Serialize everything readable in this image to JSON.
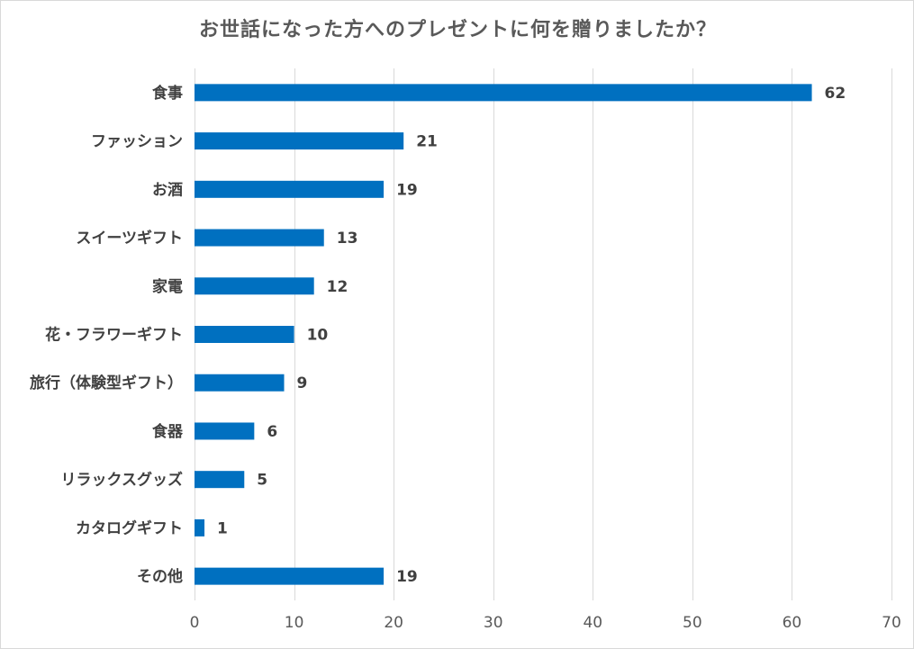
{
  "chart_data": {
    "type": "bar",
    "orientation": "horizontal",
    "title": "お世話になった方へのプレゼントに何を贈りましたか？",
    "xlabel": "",
    "ylabel": "",
    "categories": [
      "食事",
      "ファッション",
      "お酒",
      "スイーツギフト",
      "家電",
      "花・フラワーギフト",
      "旅行（体験型ギフト）",
      "食器",
      "リラックスグッズ",
      "カタログギフト",
      "その他"
    ],
    "values": [
      62,
      21,
      19,
      13,
      12,
      10,
      9,
      6,
      5,
      1,
      19
    ],
    "xlim": [
      0,
      70
    ],
    "xticks": [
      0,
      10,
      20,
      30,
      40,
      50,
      60,
      70
    ],
    "grid": "vertical",
    "data_labels": true,
    "legend": "none",
    "bar_color": "#0070c0",
    "grid_color": "#d9d9d9",
    "text_color": "#404040"
  }
}
